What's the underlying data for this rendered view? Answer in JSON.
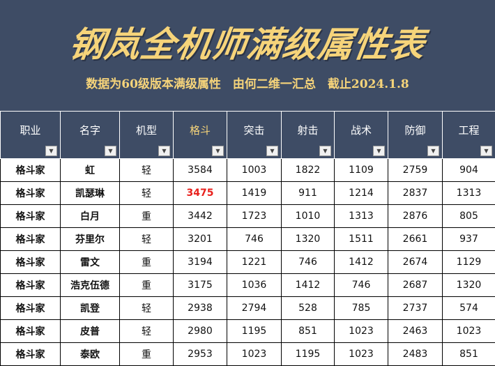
{
  "title": "钢岚全机师满级属性表",
  "subtitle": "数据为60级版本满级属性　由何二维一汇总　截止2024.1.8",
  "columns": [
    {
      "label": "职业",
      "filter": "filter-active-icon"
    },
    {
      "label": "名字",
      "filter": "dropdown-icon"
    },
    {
      "label": "机型",
      "filter": "dropdown-icon"
    },
    {
      "label": "格斗",
      "filter": "dropdown-icon",
      "highlight": true
    },
    {
      "label": "突击",
      "filter": "dropdown-icon"
    },
    {
      "label": "射击",
      "filter": "dropdown-icon"
    },
    {
      "label": "战术",
      "filter": "dropdown-icon"
    },
    {
      "label": "防御",
      "filter": "dropdown-icon"
    },
    {
      "label": "工程",
      "filter": "dropdown-icon"
    }
  ],
  "rows": [
    [
      "格斗家",
      "虹",
      "轻",
      "3584",
      "1003",
      "1822",
      "1109",
      "2759",
      "904"
    ],
    [
      "格斗家",
      "凯瑟琳",
      "轻",
      "3475",
      "1419",
      "911",
      "1214",
      "2837",
      "1313"
    ],
    [
      "格斗家",
      "白月",
      "重",
      "3442",
      "1723",
      "1010",
      "1313",
      "2876",
      "805"
    ],
    [
      "格斗家",
      "芬里尔",
      "轻",
      "3201",
      "746",
      "1320",
      "1511",
      "2661",
      "937"
    ],
    [
      "格斗家",
      "雷文",
      "重",
      "3194",
      "1221",
      "746",
      "1412",
      "2674",
      "1129"
    ],
    [
      "格斗家",
      "浩克伍德",
      "重",
      "3175",
      "1036",
      "1412",
      "746",
      "2687",
      "1320"
    ],
    [
      "格斗家",
      "凯登",
      "轻",
      "2938",
      "2794",
      "528",
      "785",
      "2737",
      "574"
    ],
    [
      "格斗家",
      "皮普",
      "轻",
      "2980",
      "1195",
      "851",
      "1023",
      "2463",
      "1023"
    ],
    [
      "格斗家",
      "泰欧",
      "重",
      "2953",
      "1023",
      "1195",
      "1023",
      "2483",
      "851"
    ]
  ],
  "highlighted_cell": {
    "row": 1,
    "col": 3,
    "color": "#e8201c"
  },
  "colors": {
    "header_bg": "#3e4c65",
    "title": "#f6d47a"
  }
}
